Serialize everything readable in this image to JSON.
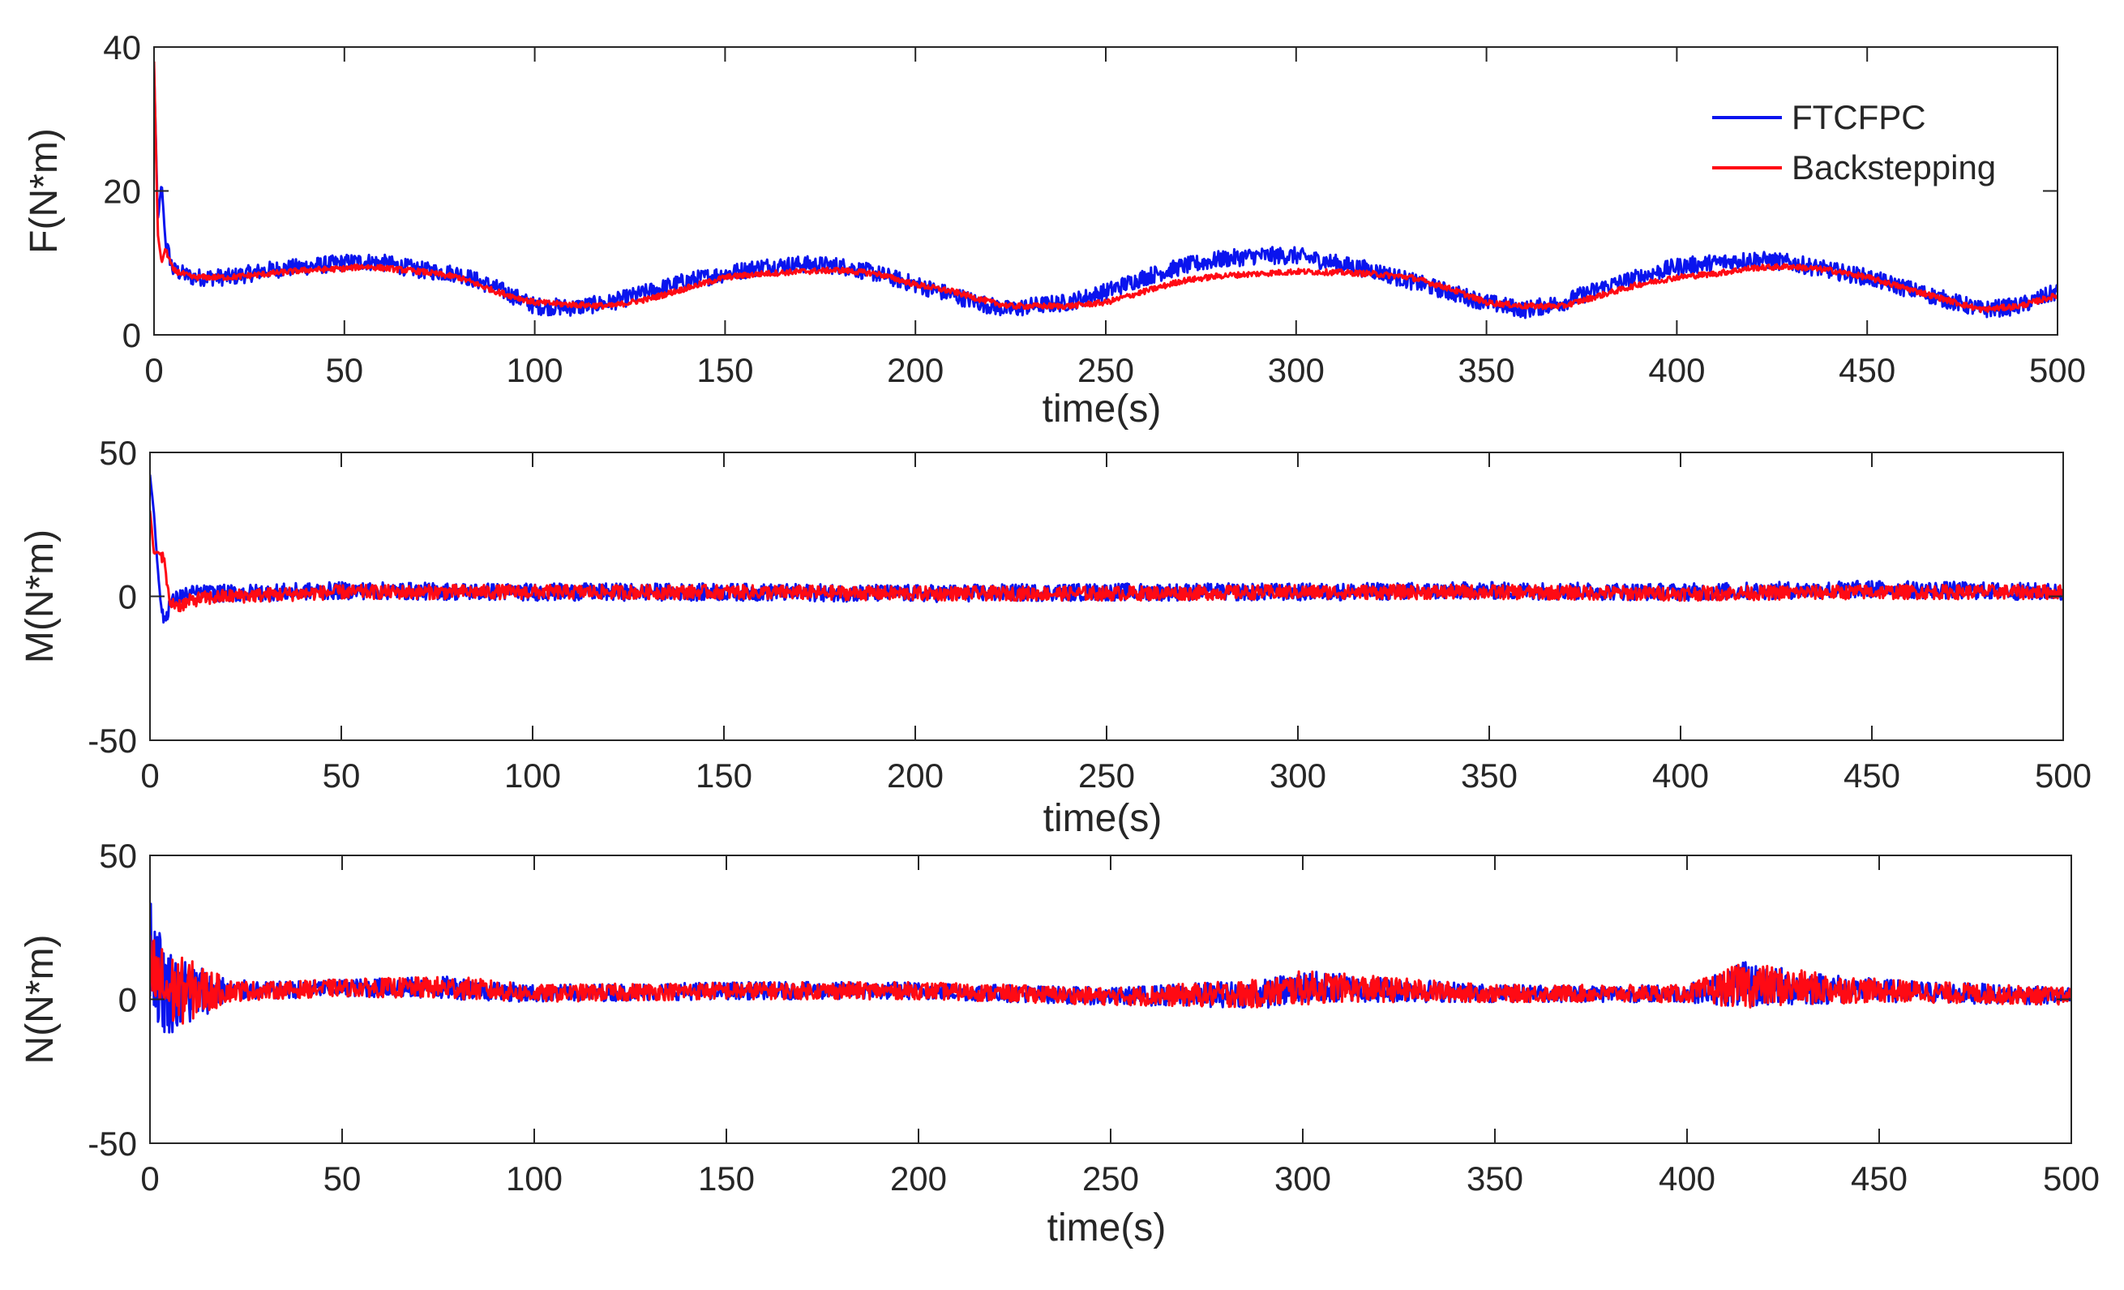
{
  "colors": {
    "background": "#ffffff",
    "axes": "#262626",
    "text": "#262626"
  },
  "legend": {
    "position": "top-right",
    "entries": [
      {
        "label": "FTCFPC",
        "color": "#0a14ee"
      },
      {
        "label": "Backstepping",
        "color": "#ff0a14"
      }
    ]
  },
  "chart_data": [
    {
      "type": "line",
      "title": "",
      "xlabel": "time(s)",
      "ylabel": "F(N*m)",
      "xlim": [
        0,
        500
      ],
      "ylim": [
        0,
        40
      ],
      "xticks": [
        0,
        50,
        100,
        150,
        200,
        250,
        300,
        350,
        400,
        450,
        500
      ],
      "yticks": [
        0,
        20,
        40
      ],
      "grid": false,
      "legend": true,
      "x": [
        0,
        1,
        2,
        3,
        5,
        10,
        20,
        30,
        40,
        50,
        55,
        60,
        70,
        80,
        90,
        100,
        110,
        120,
        130,
        140,
        150,
        160,
        170,
        180,
        190,
        200,
        210,
        220,
        225,
        230,
        240,
        250,
        260,
        270,
        280,
        290,
        300,
        310,
        320,
        330,
        340,
        350,
        360,
        370,
        380,
        390,
        400,
        410,
        420,
        430,
        440,
        450,
        460,
        470,
        480,
        490,
        500
      ],
      "series": [
        {
          "name": "FTCFPC",
          "noise": 1.2,
          "values": [
            37,
            16,
            21,
            13,
            9,
            8,
            8,
            9,
            9.5,
            10,
            10.2,
            10,
            9,
            8.5,
            6.5,
            4,
            3.8,
            4.5,
            6,
            7.5,
            8.5,
            9.5,
            9.8,
            9.6,
            8.5,
            7,
            5.5,
            4,
            3.5,
            4,
            4.5,
            6,
            8,
            9.5,
            10.5,
            11,
            11,
            10,
            9,
            7.5,
            6,
            4.5,
            3.5,
            4.5,
            6.5,
            8,
            9.5,
            10,
            10.5,
            10,
            9,
            8,
            6.5,
            5,
            3.5,
            4,
            6
          ]
        },
        {
          "name": "Backstepping",
          "noise": 0.4,
          "values": [
            38,
            14,
            10,
            12,
            9,
            8,
            8,
            8.5,
            9,
            9.2,
            9.5,
            9.3,
            8.8,
            8,
            6,
            4.5,
            4.2,
            4,
            5,
            6.5,
            8,
            8.5,
            8.8,
            9,
            8.5,
            7,
            6,
            4.5,
            4,
            4,
            4,
            4.5,
            6,
            7.5,
            8.2,
            8.5,
            8.8,
            8.7,
            8.5,
            8,
            6.5,
            4.5,
            4,
            4,
            5.5,
            7,
            8,
            8.5,
            9.3,
            9.5,
            9,
            8,
            6.5,
            5,
            3.5,
            4,
            5.5
          ]
        }
      ]
    },
    {
      "type": "line",
      "title": "",
      "xlabel": "time(s)",
      "ylabel": "M(N*m)",
      "xlim": [
        0,
        500
      ],
      "ylim": [
        -50,
        50
      ],
      "xticks": [
        0,
        50,
        100,
        150,
        200,
        250,
        300,
        350,
        400,
        450,
        500
      ],
      "yticks": [
        -50,
        0,
        50
      ],
      "grid": false,
      "legend": false,
      "x": [
        0,
        1,
        2,
        3,
        4,
        5,
        8,
        12,
        20,
        50,
        100,
        150,
        200,
        250,
        300,
        350,
        400,
        450,
        500
      ],
      "series": [
        {
          "name": "FTCFPC",
          "noise": 3,
          "values": [
            42,
            30,
            10,
            -5,
            -8,
            -3,
            0,
            1,
            1,
            2,
            1.5,
            1.5,
            1,
            1.5,
            1.5,
            2,
            1.5,
            2.5,
            1.5
          ]
        },
        {
          "name": "Backstepping",
          "noise": 2.5,
          "values": [
            30,
            15,
            15,
            15,
            10,
            -2,
            -3,
            -1,
            0,
            1.5,
            1.5,
            1.5,
            1,
            1,
            1.5,
            1.5,
            1,
            1.5,
            1.5
          ]
        }
      ]
    },
    {
      "type": "line",
      "title": "",
      "xlabel": "time(s)",
      "ylabel": "N(N*m)",
      "xlim": [
        0,
        500
      ],
      "ylim": [
        -50,
        50
      ],
      "xticks": [
        0,
        50,
        100,
        150,
        200,
        250,
        300,
        350,
        400,
        450,
        500
      ],
      "yticks": [
        -50,
        0,
        50
      ],
      "grid": false,
      "legend": false,
      "x": [
        0,
        1,
        3,
        5,
        10,
        15,
        20,
        30,
        50,
        80,
        100,
        150,
        200,
        250,
        290,
        300,
        310,
        350,
        400,
        415,
        430,
        450,
        500
      ],
      "series": [
        {
          "name": "FTCFPC",
          "noise": 3,
          "values": [
            20,
            15,
            5,
            3,
            2,
            3,
            3,
            3,
            4,
            4,
            2,
            3,
            3,
            1,
            2,
            4,
            4,
            2,
            2,
            5,
            4,
            3,
            1
          ],
          "amplitude": [
            20,
            20,
            18,
            15,
            12,
            8,
            4,
            3,
            3,
            4,
            3,
            3,
            3,
            3,
            5,
            6,
            5,
            3,
            3,
            8,
            6,
            4,
            3
          ]
        },
        {
          "name": "Backstepping",
          "noise": 3,
          "values": [
            10,
            8,
            5,
            3,
            3,
            3,
            3,
            3,
            4,
            4,
            2,
            3,
            3,
            1,
            2,
            4,
            4,
            2,
            2,
            5,
            4,
            3,
            1
          ],
          "amplitude": [
            15,
            15,
            14,
            13,
            11,
            8,
            4,
            3,
            3,
            4,
            3,
            3,
            3,
            3,
            5,
            6,
            5,
            3,
            3,
            8,
            6,
            4,
            3
          ]
        }
      ]
    }
  ]
}
